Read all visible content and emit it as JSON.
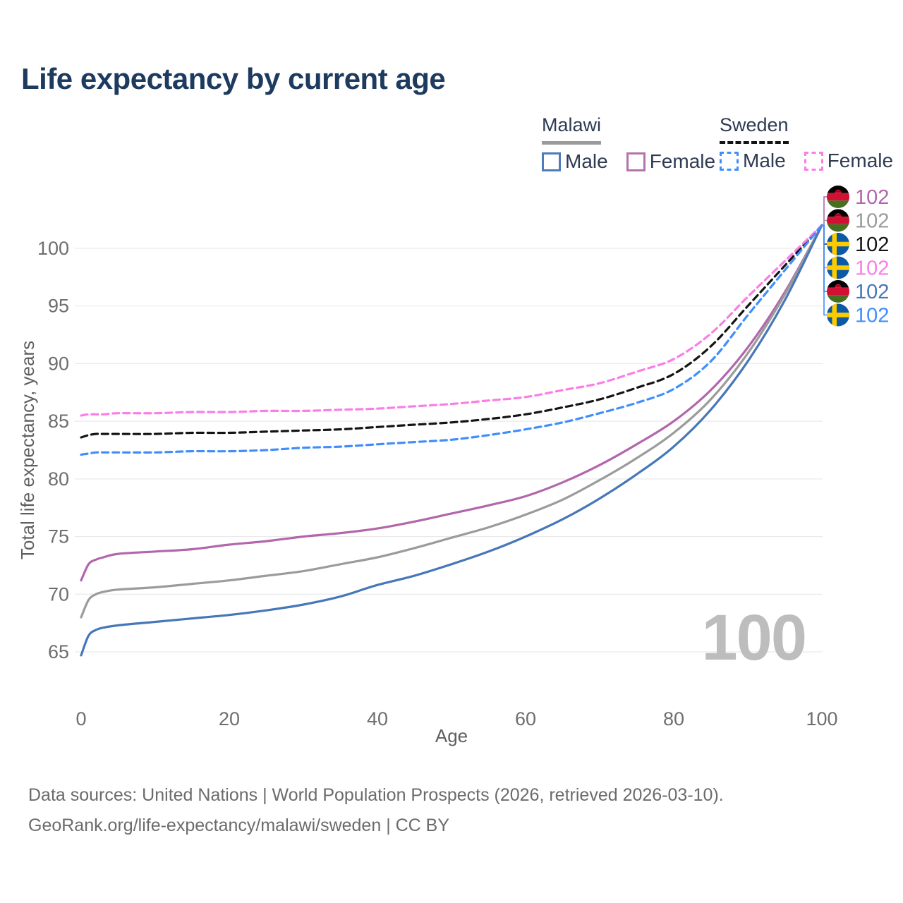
{
  "title": "Life expectancy by current age",
  "legend": {
    "groups": [
      {
        "name": "Malawi",
        "line_style": "solid",
        "underline_color": "#9b9b9b",
        "items": [
          {
            "label": "Male",
            "color": "#4d7cb8",
            "dashed": false
          },
          {
            "label": "Female",
            "color": "#b573ae",
            "dashed": false
          }
        ]
      },
      {
        "name": "Sweden",
        "line_style": "dashed",
        "underline_color": "#141414",
        "items": [
          {
            "label": "Male",
            "color": "#3f8efc",
            "dashed": true
          },
          {
            "label": "Female",
            "color": "#fb7de5",
            "dashed": true
          }
        ]
      }
    ]
  },
  "watermark": "100",
  "footer": {
    "line1": "Data sources: United Nations | World Population Prospects (2026, retrieved 2026-03-10).",
    "line2": "GeoRank.org/life-expectancy/malawi/sweden | CC BY"
  },
  "chart_data": {
    "type": "line",
    "title": "Life expectancy by current age",
    "xlabel": "Age",
    "ylabel": "Total life expectancy, years",
    "xlim": [
      0,
      100
    ],
    "ylim": [
      63,
      103.5
    ],
    "x_ticks": [
      0,
      20,
      40,
      60,
      80,
      100
    ],
    "y_ticks": [
      65,
      70,
      75,
      80,
      85,
      90,
      95,
      100
    ],
    "grid": "horizontal",
    "legend_position": "top-right",
    "x": [
      0,
      1,
      2,
      3,
      5,
      10,
      15,
      20,
      25,
      30,
      35,
      40,
      45,
      50,
      55,
      60,
      65,
      70,
      75,
      80,
      85,
      90,
      95,
      100
    ],
    "series": [
      {
        "name": "Malawi Female",
        "country": "Malawi",
        "sex": "Female",
        "flag": "malawi",
        "color": "#b266ab",
        "dashed": false,
        "end_label": "102",
        "values": [
          71.2,
          72.6,
          73.0,
          73.2,
          73.5,
          73.7,
          73.9,
          74.3,
          74.6,
          75.0,
          75.3,
          75.7,
          76.3,
          77.0,
          77.7,
          78.5,
          79.7,
          81.2,
          83.0,
          85.0,
          87.7,
          91.4,
          96.2,
          102
        ]
      },
      {
        "name": "Malawi Both sexes",
        "country": "Malawi",
        "sex": "Both",
        "flag": "malawi",
        "color": "#9b9b9b",
        "dashed": false,
        "end_label": "102",
        "values": [
          68.0,
          69.5,
          70.0,
          70.2,
          70.4,
          70.6,
          70.9,
          71.2,
          71.6,
          72.0,
          72.6,
          73.2,
          74.0,
          74.9,
          75.8,
          76.9,
          78.2,
          79.9,
          81.8,
          84.0,
          86.9,
          90.9,
          96.0,
          102
        ]
      },
      {
        "name": "Sweden Both sexes",
        "country": "Sweden",
        "sex": "Both",
        "flag": "sweden",
        "color": "#141414",
        "dashed": true,
        "end_label": "102",
        "values": [
          83.6,
          83.8,
          83.9,
          83.9,
          83.9,
          83.9,
          84.0,
          84.0,
          84.1,
          84.2,
          84.3,
          84.5,
          84.7,
          84.9,
          85.2,
          85.6,
          86.2,
          86.9,
          87.9,
          89.1,
          91.5,
          95.0,
          98.5,
          102
        ]
      },
      {
        "name": "Sweden Female",
        "country": "Sweden",
        "sex": "Female",
        "flag": "sweden",
        "color": "#fb7de5",
        "dashed": true,
        "end_label": "102",
        "values": [
          85.5,
          85.6,
          85.6,
          85.6,
          85.7,
          85.7,
          85.8,
          85.8,
          85.9,
          85.9,
          86.0,
          86.1,
          86.3,
          86.5,
          86.8,
          87.1,
          87.7,
          88.3,
          89.3,
          90.4,
          92.6,
          95.8,
          98.9,
          102
        ]
      },
      {
        "name": "Malawi Male",
        "country": "Malawi",
        "sex": "Male",
        "flag": "malawi",
        "color": "#4677b8",
        "dashed": false,
        "end_label": "102",
        "values": [
          64.7,
          66.4,
          66.9,
          67.1,
          67.3,
          67.6,
          67.9,
          68.2,
          68.6,
          69.1,
          69.8,
          70.8,
          71.6,
          72.6,
          73.7,
          75.0,
          76.5,
          78.3,
          80.4,
          82.8,
          86.0,
          90.2,
          95.5,
          102
        ]
      },
      {
        "name": "Sweden Male",
        "country": "Sweden",
        "sex": "Male",
        "flag": "sweden",
        "color": "#3f8efc",
        "dashed": true,
        "end_label": "102",
        "values": [
          82.1,
          82.2,
          82.3,
          82.3,
          82.3,
          82.3,
          82.4,
          82.4,
          82.5,
          82.7,
          82.8,
          83.0,
          83.2,
          83.4,
          83.8,
          84.3,
          84.9,
          85.7,
          86.6,
          87.8,
          90.2,
          94.2,
          98.1,
          102
        ]
      }
    ],
    "flag_colors": {
      "malawi": {
        "black": "#000000",
        "red": "#d21034",
        "green": "#44701f"
      },
      "sweden": {
        "blue": "#0a5aa6",
        "yellow": "#fecb00"
      }
    },
    "colors": {
      "grid": "#eaeaec",
      "tick_text": "#6e6e6e",
      "axis_label_text": "#5f5f5f"
    }
  }
}
